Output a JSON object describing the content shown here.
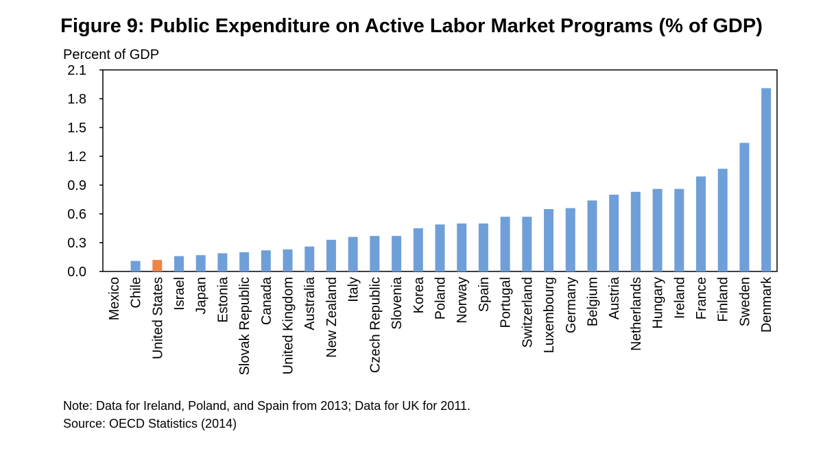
{
  "chart_data": {
    "type": "bar",
    "title": "Figure 9: Public Expenditure on Active Labor Market Programs (% of GDP)",
    "ylabel": "Percent of GDP",
    "xlabel": "",
    "ylim": [
      0,
      2.1
    ],
    "yticks": [
      "0.0",
      "0.3",
      "0.6",
      "0.9",
      "1.2",
      "1.5",
      "1.8",
      "2.1"
    ],
    "grid": false,
    "highlight_category": "United States",
    "colors": {
      "bar": "#6f9fd8",
      "highlight": "#ee8446",
      "axis": "#000000"
    },
    "categories": [
      "Mexico",
      "Chile",
      "United States",
      "Israel",
      "Japan",
      "Estonia",
      "Slovak Republic",
      "Canada",
      "United Kingdom",
      "Australia",
      "New Zealand",
      "Italy",
      "Czech Republic",
      "Slovenia",
      "Korea",
      "Poland",
      "Norway",
      "Spain",
      "Portugal",
      "Switzerland",
      "Luxembourg",
      "Germany",
      "Belgium",
      "Austria",
      "Netherlands",
      "Hungary",
      "Ireland",
      "France",
      "Finland",
      "Sweden",
      "Denmark"
    ],
    "values": [
      0.0,
      0.11,
      0.12,
      0.16,
      0.17,
      0.19,
      0.2,
      0.22,
      0.23,
      0.26,
      0.33,
      0.36,
      0.37,
      0.37,
      0.45,
      0.49,
      0.5,
      0.5,
      0.57,
      0.57,
      0.65,
      0.66,
      0.74,
      0.8,
      0.83,
      0.86,
      0.86,
      0.99,
      1.07,
      1.34,
      1.91
    ]
  },
  "notes": {
    "note": "Note: Data for Ireland, Poland, and Spain from 2013; Data for UK for 2011.",
    "source": "Source: OECD Statistics (2014)"
  }
}
